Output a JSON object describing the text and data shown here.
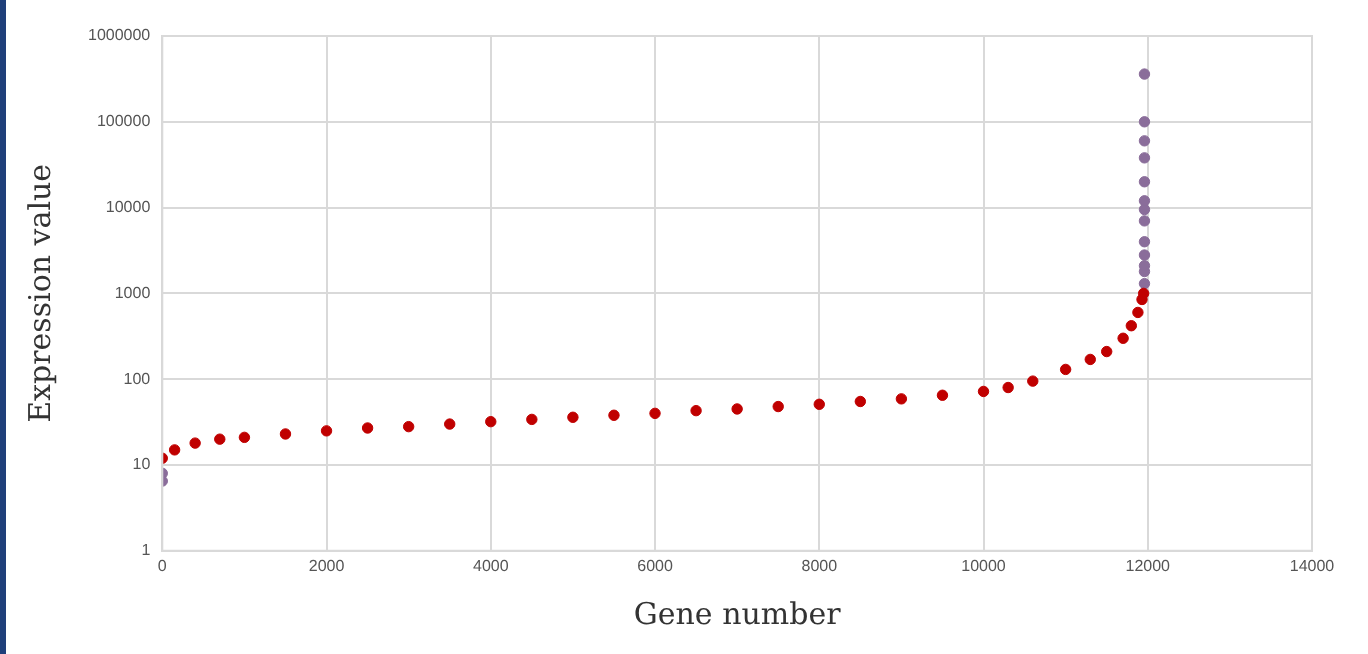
{
  "chart_data": {
    "type": "scatter",
    "xlabel": "Gene number",
    "ylabel": "Expression value",
    "log": "y",
    "grid": true,
    "marker": "circle",
    "xlim": [
      0,
      14000
    ],
    "xticks": [
      0,
      2000,
      4000,
      6000,
      8000,
      10000,
      12000,
      14000
    ],
    "ylim": [
      1,
      1000000
    ],
    "yticks": [
      1,
      10,
      100,
      1000,
      10000,
      100000,
      1000000
    ],
    "series": [
      {
        "color": "#c00000",
        "x": [
          0,
          150,
          400,
          700,
          1000,
          1500,
          2000,
          2500,
          3000,
          3500,
          4000,
          4500,
          5000,
          5500,
          6000,
          6500,
          7000,
          7500,
          8000,
          8500,
          9000,
          9500,
          10000,
          10300,
          10600,
          11000,
          11300,
          11500,
          11700,
          11800,
          11880,
          11930,
          11950
        ],
        "values": [
          12,
          15,
          18,
          20,
          21,
          23,
          25,
          27,
          28,
          30,
          32,
          34,
          36,
          38,
          40,
          43,
          45,
          48,
          51,
          55,
          59,
          65,
          72,
          80,
          95,
          130,
          170,
          210,
          300,
          420,
          600,
          850,
          1000
        ]
      },
      {
        "color": "#8a6d9a",
        "x": [
          0,
          0,
          11960,
          11960,
          11960,
          11960,
          11960,
          11960,
          11960,
          11960,
          11960,
          11960,
          11960,
          11960,
          11960
        ],
        "values": [
          6.5,
          8,
          1300,
          1800,
          2100,
          2800,
          4000,
          7000,
          9500,
          12000,
          20000,
          38000,
          60000,
          100000,
          360000
        ]
      }
    ]
  }
}
